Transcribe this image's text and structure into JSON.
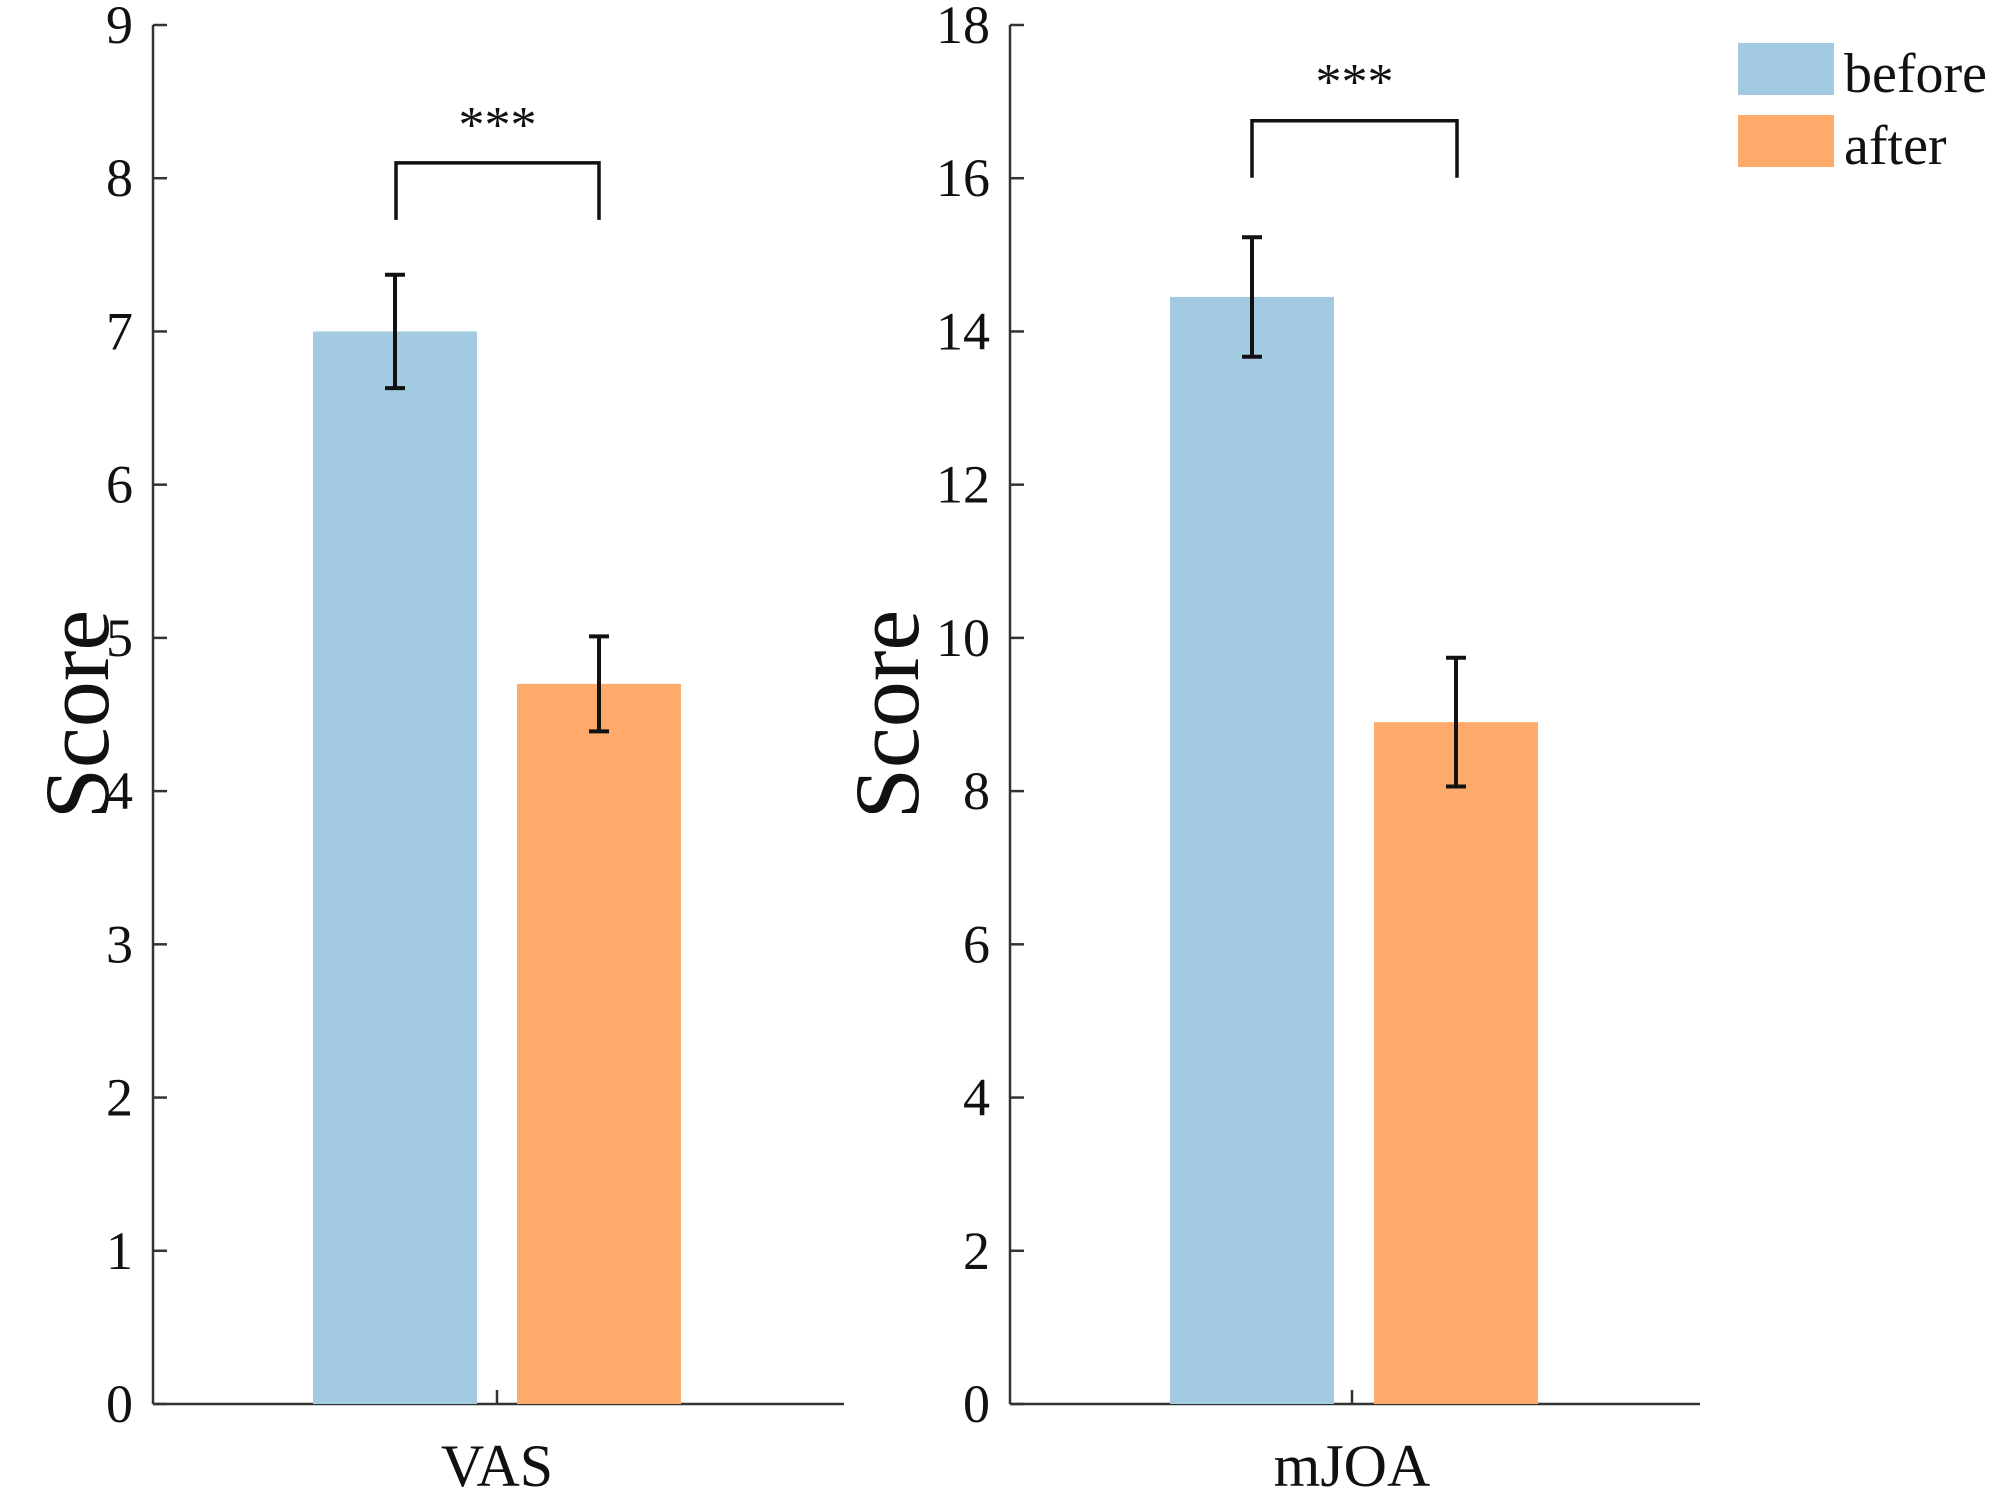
{
  "chart_data": [
    {
      "type": "bar",
      "categories": [
        "VAS"
      ],
      "series": [
        {
          "name": "before",
          "values": [
            7.0
          ],
          "error": [
            0.37
          ],
          "color": "#a2cbe2"
        },
        {
          "name": "after",
          "values": [
            4.7
          ],
          "error": [
            0.31
          ],
          "color": "#fdaa6a"
        }
      ],
      "xlabel": "VAS",
      "ylabel": "Score",
      "ylim": [
        0,
        9
      ],
      "yticks": [
        "0",
        "1",
        "2",
        "3",
        "4",
        "5",
        "6",
        "7",
        "8",
        "9"
      ],
      "annotation": {
        "text": "***",
        "bracket_level": 8.1
      }
    },
    {
      "type": "bar",
      "categories": [
        "mJOA"
      ],
      "series": [
        {
          "name": "before",
          "values": [
            14.45
          ],
          "error": [
            0.78
          ],
          "color": "#a2cbe2"
        },
        {
          "name": "after",
          "values": [
            8.9
          ],
          "error": [
            0.84
          ],
          "color": "#fdaa6a"
        }
      ],
      "xlabel": "mJOA",
      "ylabel": "Score",
      "ylim": [
        0,
        18
      ],
      "yticks": [
        "0",
        "2",
        "4",
        "6",
        "8",
        "10",
        "12",
        "14",
        "16",
        "18"
      ],
      "annotation": {
        "text": "***",
        "bracket_level": 16.75
      }
    }
  ],
  "legend": {
    "position": "top-right",
    "entries": [
      {
        "label": "before",
        "color": "#a2cbe2"
      },
      {
        "label": "after",
        "color": "#fdaa6a"
      }
    ]
  }
}
